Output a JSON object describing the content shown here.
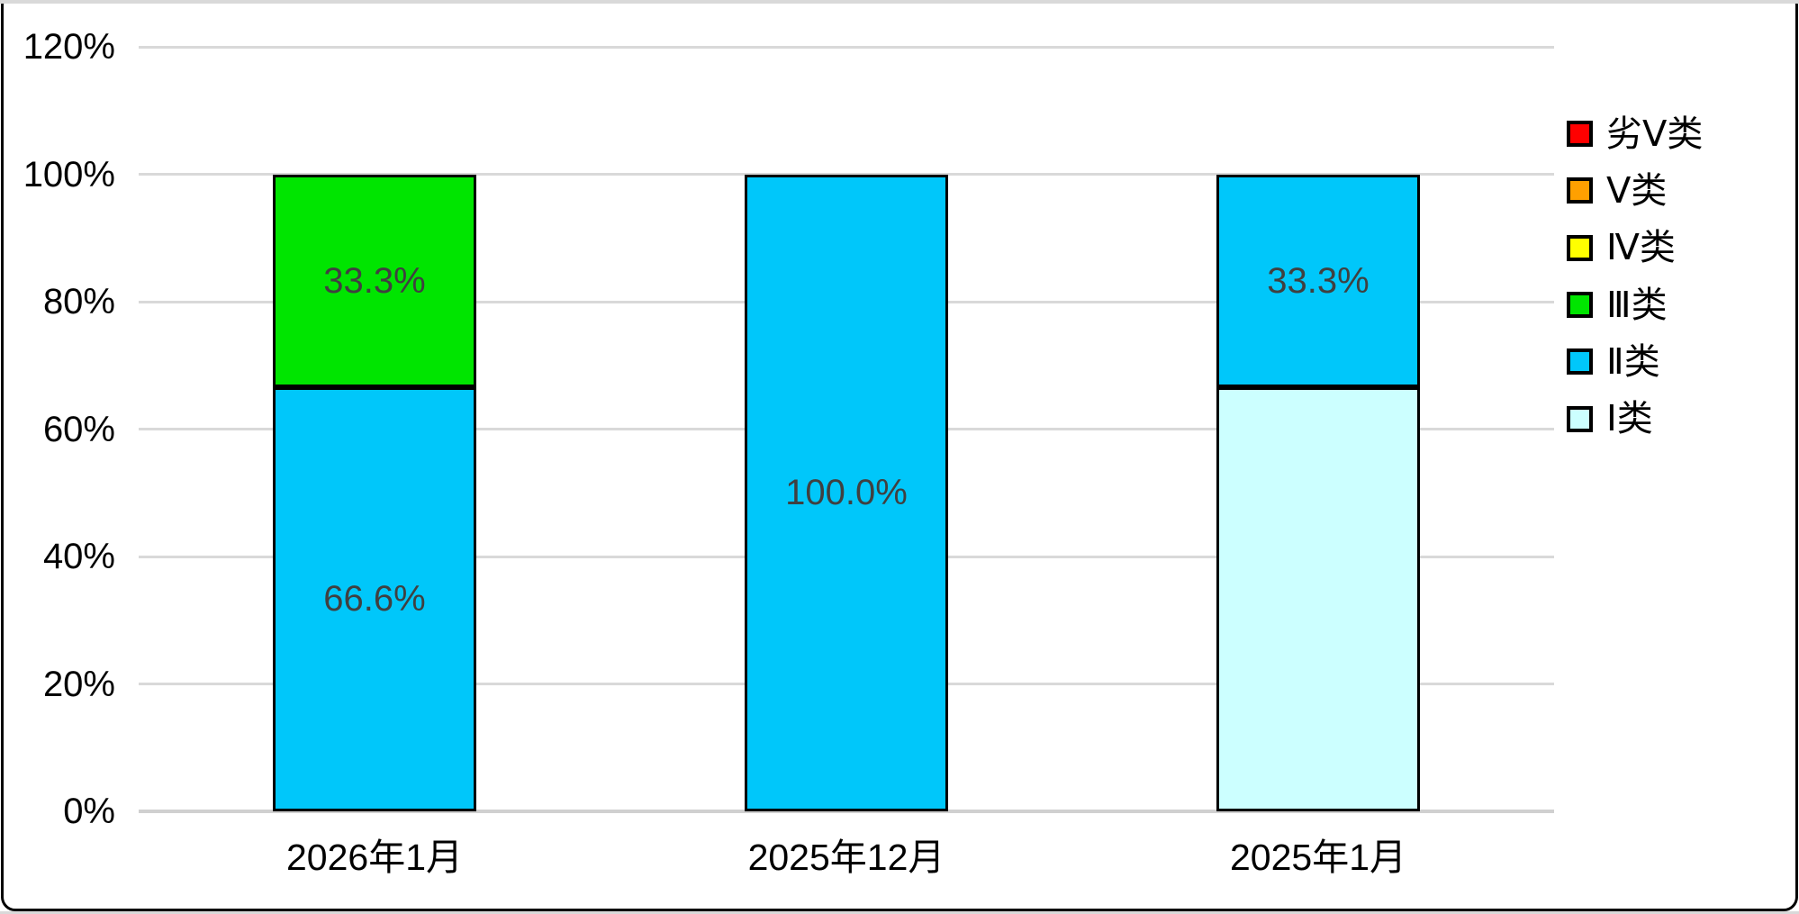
{
  "chart_data": {
    "type": "bar",
    "stacked": true,
    "percent_stacked": true,
    "title": "",
    "xlabel": "",
    "ylabel": "",
    "grid": true,
    "legend_position": "right",
    "y_axis": {
      "min": 0,
      "max": 120,
      "step": 20,
      "ticks": [
        {
          "value": 0,
          "label": "0%"
        },
        {
          "value": 20,
          "label": "20%"
        },
        {
          "value": 40,
          "label": "40%"
        },
        {
          "value": 60,
          "label": "60%"
        },
        {
          "value": 80,
          "label": "80%"
        },
        {
          "value": 100,
          "label": "100%"
        },
        {
          "value": 120,
          "label": "120%"
        }
      ]
    },
    "classes": [
      {
        "name": "劣Ⅴ类",
        "color": "#FF0000"
      },
      {
        "name": "Ⅴ类",
        "color": "#FFA000"
      },
      {
        "name": "Ⅳ类",
        "color": "#FFFF00"
      },
      {
        "name": "Ⅲ类",
        "color": "#00E500"
      },
      {
        "name": "Ⅱ类",
        "color": "#00C7FA"
      },
      {
        "name": "Ⅰ类",
        "color": "#CCFFFF"
      }
    ],
    "categories": [
      "2026年1月",
      "2025年12月",
      "2025年1月"
    ],
    "bars": [
      {
        "category": "2026年1月",
        "segments": [
          {
            "class": "Ⅱ类",
            "value": 66.6,
            "label": "66.6%"
          },
          {
            "class": "Ⅲ类",
            "value": 33.3,
            "label": "33.3%"
          }
        ]
      },
      {
        "category": "2025年12月",
        "segments": [
          {
            "class": "Ⅱ类",
            "value": 100.0,
            "label": "100.0%"
          }
        ]
      },
      {
        "category": "2025年1月",
        "segments": [
          {
            "class": "Ⅰ类",
            "value": 66.6,
            "label": null
          },
          {
            "class": "Ⅱ类",
            "value": 33.3,
            "label": "33.3%"
          }
        ]
      }
    ],
    "colors": {
      "gridline": "#D9D9D9",
      "bar_border": "#000000",
      "data_label": "#404040"
    }
  }
}
